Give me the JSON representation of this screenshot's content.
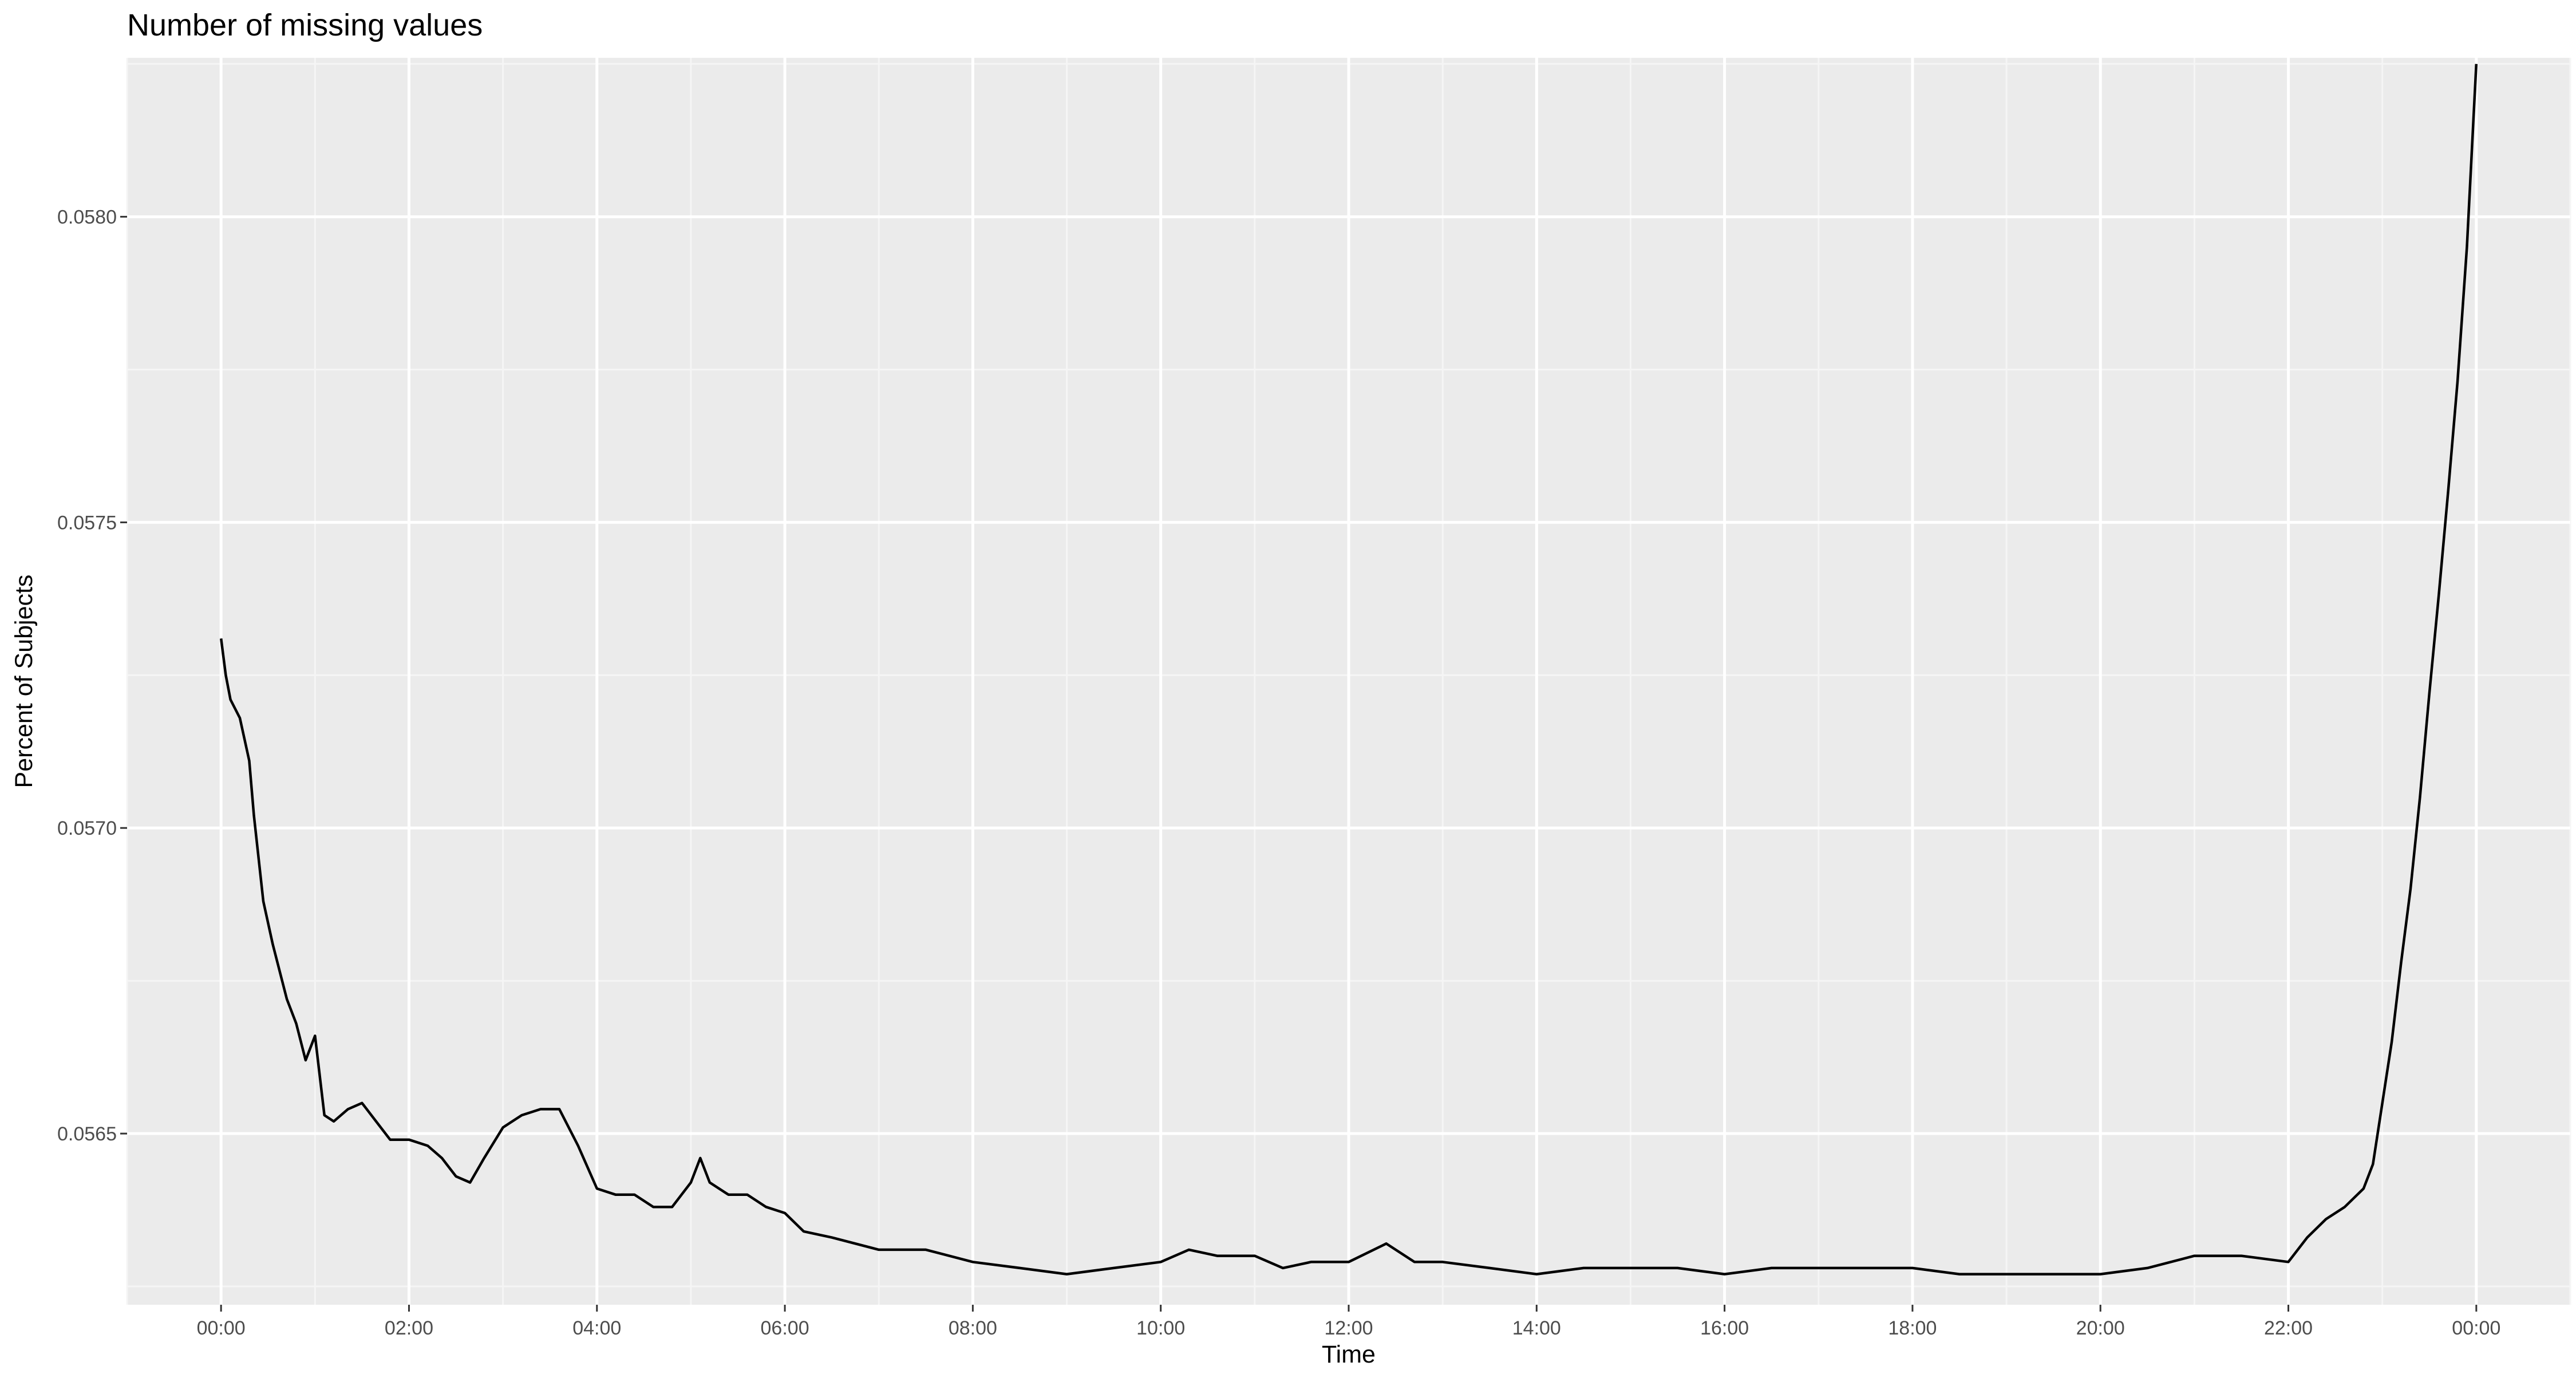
{
  "chart_data": {
    "type": "line",
    "title": "Number of missing values",
    "xlabel": "Time",
    "ylabel": "Percent of Subjects",
    "x_unit": "hours",
    "xlim": [
      -1.0,
      25.0
    ],
    "ylim": [
      0.05622,
      0.05826
    ],
    "x_ticks": [
      0,
      2,
      4,
      6,
      8,
      10,
      12,
      14,
      16,
      18,
      20,
      22,
      24
    ],
    "x_tick_labels": [
      "00:00",
      "02:00",
      "04:00",
      "06:00",
      "08:00",
      "10:00",
      "12:00",
      "14:00",
      "16:00",
      "18:00",
      "20:00",
      "22:00",
      "00:00"
    ],
    "y_ticks": [
      0.0565,
      0.057,
      0.0575,
      0.058
    ],
    "y_tick_labels": [
      "0.0565",
      "0.0570",
      "0.0575",
      "0.0580"
    ],
    "grid": true,
    "legend": "none",
    "series": [
      {
        "color": "#000000",
        "x": [
          0,
          0.05,
          0.1,
          0.2,
          0.3,
          0.35,
          0.45,
          0.55,
          0.6,
          0.7,
          0.8,
          0.9,
          1.0,
          1.1,
          1.2,
          1.35,
          1.5,
          1.65,
          1.8,
          2.0,
          2.2,
          2.35,
          2.5,
          2.65,
          2.8,
          3.0,
          3.2,
          3.4,
          3.6,
          3.8,
          4.0,
          4.2,
          4.4,
          4.6,
          4.8,
          5.0,
          5.1,
          5.2,
          5.4,
          5.6,
          5.8,
          6.0,
          6.2,
          6.5,
          7.0,
          7.5,
          8.0,
          8.5,
          9.0,
          9.5,
          10.0,
          10.3,
          10.6,
          11.0,
          11.3,
          11.6,
          12.0,
          12.4,
          12.7,
          13.0,
          13.5,
          14.0,
          14.5,
          15.0,
          15.5,
          16.0,
          16.5,
          17.0,
          17.5,
          18.0,
          18.5,
          19.0,
          19.5,
          20.0,
          20.5,
          21.0,
          21.5,
          22.0,
          22.2,
          22.4,
          22.6,
          22.8,
          22.9,
          23.0,
          23.1,
          23.2,
          23.3,
          23.4,
          23.5,
          23.6,
          23.7,
          23.8,
          23.9,
          23.95,
          24.0
        ],
        "y": [
          0.05731,
          0.05725,
          0.05721,
          0.05718,
          0.05711,
          0.05702,
          0.05688,
          0.05681,
          0.05678,
          0.05672,
          0.05668,
          0.05662,
          0.05666,
          0.05653,
          0.05652,
          0.05654,
          0.05655,
          0.05652,
          0.05649,
          0.05649,
          0.05648,
          0.05646,
          0.05643,
          0.05642,
          0.05646,
          0.05651,
          0.05653,
          0.05654,
          0.05654,
          0.05648,
          0.05641,
          0.0564,
          0.0564,
          0.05638,
          0.05638,
          0.05642,
          0.05646,
          0.05642,
          0.0564,
          0.0564,
          0.05638,
          0.05637,
          0.05634,
          0.05633,
          0.05631,
          0.05631,
          0.05629,
          0.05628,
          0.05627,
          0.05628,
          0.05629,
          0.05631,
          0.0563,
          0.0563,
          0.05628,
          0.05629,
          0.05629,
          0.05632,
          0.05629,
          0.05629,
          0.05628,
          0.05627,
          0.05628,
          0.05628,
          0.05628,
          0.05627,
          0.05628,
          0.05628,
          0.05628,
          0.05628,
          0.05627,
          0.05627,
          0.05627,
          0.05627,
          0.05628,
          0.0563,
          0.0563,
          0.05629,
          0.05633,
          0.05636,
          0.05638,
          0.05641,
          0.05645,
          0.05655,
          0.05665,
          0.05678,
          0.0569,
          0.05705,
          0.05722,
          0.05738,
          0.05755,
          0.05773,
          0.05795,
          0.0581,
          0.05825
        ]
      }
    ]
  }
}
